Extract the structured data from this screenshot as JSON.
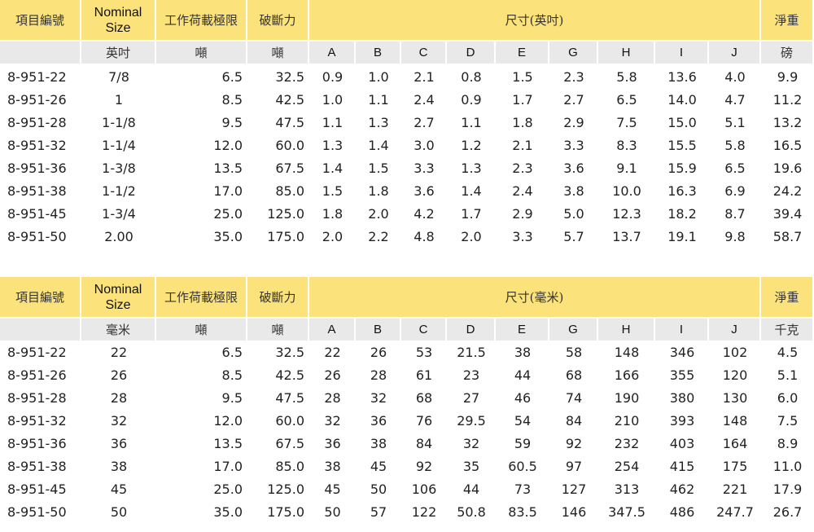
{
  "tables": [
    {
      "header": {
        "item_code": "項目編號",
        "nominal_line1": "Nominal",
        "nominal_line2": "Size",
        "working_load": "工作荷載極限",
        "breaking_force": "破斷力",
        "dimensions": "尺寸(英吋)",
        "net_weight": "淨重"
      },
      "units": [
        "英吋",
        "噸",
        "噸",
        "A",
        "B",
        "C",
        "D",
        "E",
        "G",
        "H",
        "I",
        "J",
        "磅"
      ],
      "rows": [
        [
          "8-951-22",
          "7/8",
          "6.5",
          "32.5",
          "0.9",
          "1.0",
          "2.1",
          "0.8",
          "1.5",
          "2.3",
          "5.8",
          "13.6",
          "4.0",
          "9.9"
        ],
        [
          "8-951-26",
          "1",
          "8.5",
          "42.5",
          "1.0",
          "1.1",
          "2.4",
          "0.9",
          "1.7",
          "2.7",
          "6.5",
          "14.0",
          "4.7",
          "11.2"
        ],
        [
          "8-951-28",
          "1-1/8",
          "9.5",
          "47.5",
          "1.1",
          "1.3",
          "2.7",
          "1.1",
          "1.8",
          "2.9",
          "7.5",
          "15.0",
          "5.1",
          "13.2"
        ],
        [
          "8-951-32",
          "1-1/4",
          "12.0",
          "60.0",
          "1.3",
          "1.4",
          "3.0",
          "1.2",
          "2.1",
          "3.3",
          "8.3",
          "15.5",
          "5.8",
          "16.5"
        ],
        [
          "8-951-36",
          "1-3/8",
          "13.5",
          "67.5",
          "1.4",
          "1.5",
          "3.3",
          "1.3",
          "2.3",
          "3.6",
          "9.1",
          "15.9",
          "6.5",
          "19.6"
        ],
        [
          "8-951-38",
          "1-1/2",
          "17.0",
          "85.0",
          "1.5",
          "1.8",
          "3.6",
          "1.4",
          "2.4",
          "3.8",
          "10.0",
          "16.3",
          "6.9",
          "24.2"
        ],
        [
          "8-951-45",
          "1-3/4",
          "25.0",
          "125.0",
          "1.8",
          "2.0",
          "4.2",
          "1.7",
          "2.9",
          "5.0",
          "12.3",
          "18.2",
          "8.7",
          "39.4"
        ],
        [
          "8-951-50",
          "2.00",
          "35.0",
          "175.0",
          "2.0",
          "2.2",
          "4.8",
          "2.0",
          "3.3",
          "5.7",
          "13.7",
          "19.1",
          "9.8",
          "58.7"
        ]
      ]
    },
    {
      "header": {
        "item_code": "項目編號",
        "nominal_line1": "Nominal",
        "nominal_line2": "Size",
        "working_load": "工作荷載極限",
        "breaking_force": "破斷力",
        "dimensions": "尺寸(毫米)",
        "net_weight": "淨重"
      },
      "units": [
        "毫米",
        "噸",
        "噸",
        "A",
        "B",
        "C",
        "D",
        "E",
        "G",
        "H",
        "I",
        "J",
        "千克"
      ],
      "rows": [
        [
          "8-951-22",
          "22",
          "6.5",
          "32.5",
          "22",
          "26",
          "53",
          "21.5",
          "38",
          "58",
          "148",
          "346",
          "102",
          "4.5"
        ],
        [
          "8-951-26",
          "26",
          "8.5",
          "42.5",
          "26",
          "28",
          "61",
          "23",
          "44",
          "68",
          "166",
          "355",
          "120",
          "5.1"
        ],
        [
          "8-951-28",
          "28",
          "9.5",
          "47.5",
          "28",
          "32",
          "68",
          "27",
          "46",
          "74",
          "190",
          "380",
          "130",
          "6.0"
        ],
        [
          "8-951-32",
          "32",
          "12.0",
          "60.0",
          "32",
          "36",
          "76",
          "29.5",
          "54",
          "84",
          "210",
          "393",
          "148",
          "7.5"
        ],
        [
          "8-951-36",
          "36",
          "13.5",
          "67.5",
          "36",
          "38",
          "84",
          "32",
          "59",
          "92",
          "232",
          "403",
          "164",
          "8.9"
        ],
        [
          "8-951-38",
          "38",
          "17.0",
          "85.0",
          "38",
          "45",
          "92",
          "35",
          "60.5",
          "97",
          "254",
          "415",
          "175",
          "11.0"
        ],
        [
          "8-951-45",
          "45",
          "25.0",
          "125.0",
          "45",
          "50",
          "106",
          "44",
          "73",
          "127",
          "313",
          "462",
          "221",
          "17.9"
        ],
        [
          "8-951-50",
          "50",
          "35.0",
          "175.0",
          "50",
          "57",
          "122",
          "50.8",
          "83.5",
          "146",
          "347.5",
          "486",
          "247.7",
          "26.7"
        ]
      ]
    }
  ]
}
